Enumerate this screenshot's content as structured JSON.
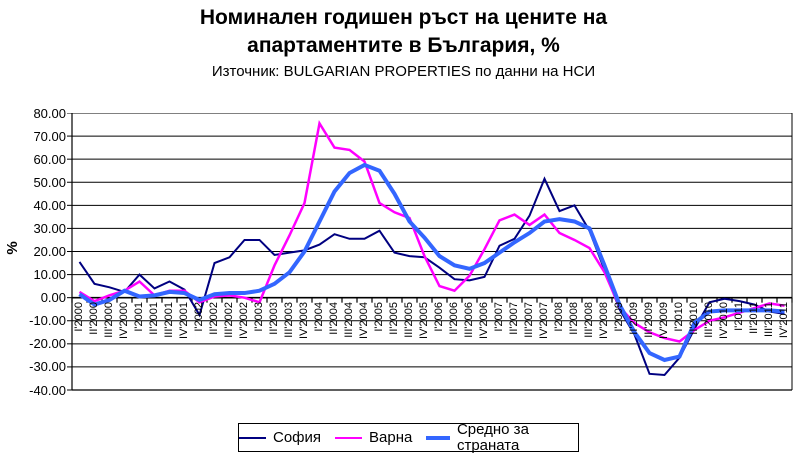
{
  "title": {
    "line1": "Номинален годишен ръст на цените на",
    "line2": "апартаментите в България, %",
    "subtitle": "Източник: BULGARIAN PROPERTIES по данни на НСИ"
  },
  "chart_data": {
    "type": "line",
    "title": "Номинален годишен ръст на цените на апартаментите в България, %",
    "subtitle": "Източник: BULGARIAN PROPERTIES по данни на НСИ",
    "ylabel": "%",
    "ylim": [
      -40,
      80
    ],
    "ytick_step": 10,
    "ytick_labels": [
      "80.00",
      "70.00",
      "60.00",
      "50.00",
      "40.00",
      "30.00",
      "20.00",
      "10.00",
      "0.00",
      "-10.00",
      "-20.00",
      "-30.00",
      "-40.00"
    ],
    "grid": "horizontal",
    "legend_position": "bottom",
    "categories": [
      "I'2000",
      "II'2000",
      "III'2000",
      "IV'2000",
      "I'2001",
      "II'2001",
      "III'2001",
      "IV'2001",
      "I'2002",
      "II'2002",
      "III'2002",
      "IV'2002",
      "I'2003",
      "II'2003",
      "III'2003",
      "IV'2003",
      "I'2004",
      "II'2004",
      "III'2004",
      "IV'2004",
      "I'2005",
      "II'2005",
      "III'2005",
      "IV'2005",
      "I'2006",
      "II'2006",
      "III'2006",
      "IV'2006",
      "I'2007",
      "II'2007",
      "III'2007",
      "IV'2007",
      "I'2008",
      "II'2008",
      "III'2008",
      "IV'2008",
      "I'2009",
      "II'2009",
      "III'2009",
      "IV'2009",
      "I'2010",
      "II'2010",
      "III'2010",
      "IV'2010",
      "I'2011",
      "II'2011",
      "III'2011",
      "IV'2011"
    ],
    "series": [
      {
        "name": "София",
        "color": "#000080",
        "stroke_width": 2,
        "values": [
          15.5,
          6,
          4.5,
          2.5,
          10,
          4,
          7,
          3.5,
          -7.5,
          15,
          17.5,
          25,
          25,
          18.5,
          19.5,
          20.5,
          23,
          27.5,
          25.5,
          25.5,
          29,
          19.5,
          18,
          17.5,
          13,
          8,
          7.5,
          9,
          22.5,
          25.5,
          35.5,
          51.5,
          37.5,
          40,
          29,
          12,
          -5,
          -16,
          -33,
          -33.5,
          -26,
          -13.5,
          -2,
          -0.5,
          -1.5,
          -3,
          -6,
          -7
        ]
      },
      {
        "name": "Варна",
        "color": "#FF00FF",
        "stroke_width": 2.5,
        "values": [
          2.5,
          -1.5,
          1,
          3,
          7,
          1,
          3,
          3,
          -2,
          0.5,
          1,
          0,
          -2,
          14,
          27,
          41,
          75.5,
          65,
          64,
          59,
          41,
          37,
          34.5,
          18,
          5,
          3,
          9.5,
          21,
          33.5,
          36,
          31.5,
          36,
          28,
          25,
          21.5,
          11,
          -4,
          -11,
          -15,
          -17.5,
          -19,
          -14,
          -10,
          -8.5,
          -6.5,
          -4.5,
          -2.5,
          -3.5
        ]
      },
      {
        "name": "Средно за страната",
        "color": "#3366FF",
        "stroke_width": 4,
        "values": [
          1.5,
          -3,
          -1,
          3,
          0.5,
          1,
          2.5,
          2,
          -1,
          1.5,
          2,
          2,
          3,
          6,
          11,
          20,
          33,
          46,
          54,
          57.5,
          55,
          45,
          33,
          26,
          18,
          14,
          12.5,
          15,
          19.5,
          24,
          28,
          33,
          34,
          33,
          30,
          14,
          -3,
          -15,
          -24,
          -27,
          -25.5,
          -11,
          -6,
          -5.5,
          -5.5,
          -5.5,
          -5.5,
          -6
        ]
      }
    ]
  }
}
